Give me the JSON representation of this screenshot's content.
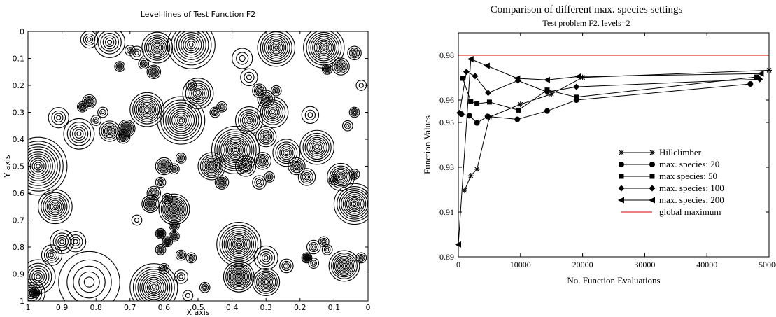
{
  "chart_data": [
    {
      "type": "contour",
      "title": "Level lines of Test Function F2",
      "xlabel": "X axis",
      "ylabel": "Y axis",
      "xlim": [
        1,
        0
      ],
      "ylim": [
        1,
        0
      ],
      "x_ticks": [
        "1",
        "0.9",
        "0.8",
        "0.7",
        "0.6",
        "0.5",
        "0.4",
        "0.3",
        "0.2",
        "0.1",
        "0"
      ],
      "y_ticks": [
        "0",
        "0.1",
        "0.2",
        "0.3",
        "0.4",
        "0.5",
        "0.6",
        "0.7",
        "0.8",
        "0.9",
        "1"
      ],
      "peaks": [
        {
          "x": 0.91,
          "y": 0.32,
          "r": 0.03,
          "n": 4
        },
        {
          "x": 0.85,
          "y": 0.38,
          "r": 0.045,
          "n": 6
        },
        {
          "x": 0.97,
          "y": 0.5,
          "r": 0.085,
          "n": 12
        },
        {
          "x": 0.92,
          "y": 0.65,
          "r": 0.05,
          "n": 9
        },
        {
          "x": 0.9,
          "y": 0.78,
          "r": 0.035,
          "n": 5
        },
        {
          "x": 0.93,
          "y": 0.83,
          "r": 0.03,
          "n": 5
        },
        {
          "x": 0.97,
          "y": 0.91,
          "r": 0.05,
          "n": 7
        },
        {
          "x": 0.99,
          "y": 0.97,
          "r": 0.04,
          "n": 6
        },
        {
          "x": 0.86,
          "y": 0.78,
          "r": 0.03,
          "n": 4
        },
        {
          "x": 0.82,
          "y": 0.03,
          "r": 0.025,
          "n": 4
        },
        {
          "x": 0.76,
          "y": 0.04,
          "r": 0.045,
          "n": 6
        },
        {
          "x": 0.7,
          "y": 0.07,
          "r": 0.015,
          "n": 3
        },
        {
          "x": 0.68,
          "y": 0.08,
          "r": 0.02,
          "n": 3
        },
        {
          "x": 0.73,
          "y": 0.13,
          "r": 0.015,
          "n": 5
        },
        {
          "x": 0.66,
          "y": 0.12,
          "r": 0.015,
          "n": 4
        },
        {
          "x": 0.62,
          "y": 0.06,
          "r": 0.045,
          "n": 9
        },
        {
          "x": 0.63,
          "y": 0.15,
          "r": 0.02,
          "n": 6
        },
        {
          "x": 0.82,
          "y": 0.26,
          "r": 0.02,
          "n": 6
        },
        {
          "x": 0.84,
          "y": 0.28,
          "r": 0.015,
          "n": 5
        },
        {
          "x": 0.78,
          "y": 0.3,
          "r": 0.015,
          "n": 3
        },
        {
          "x": 0.8,
          "y": 0.33,
          "r": 0.015,
          "n": 3
        },
        {
          "x": 0.65,
          "y": 0.29,
          "r": 0.05,
          "n": 10
        },
        {
          "x": 0.71,
          "y": 0.36,
          "r": 0.025,
          "n": 8
        },
        {
          "x": 0.72,
          "y": 0.39,
          "r": 0.02,
          "n": 6
        },
        {
          "x": 0.76,
          "y": 0.37,
          "r": 0.03,
          "n": 7
        },
        {
          "x": 0.52,
          "y": 0.05,
          "r": 0.07,
          "n": 10
        },
        {
          "x": 0.37,
          "y": 0.1,
          "r": 0.03,
          "n": 3
        },
        {
          "x": 0.35,
          "y": 0.17,
          "r": 0.025,
          "n": 3
        },
        {
          "x": 0.27,
          "y": 0.06,
          "r": 0.055,
          "n": 10
        },
        {
          "x": 0.13,
          "y": 0.06,
          "r": 0.06,
          "n": 11
        },
        {
          "x": 0.04,
          "y": 0.08,
          "r": 0.02,
          "n": 5
        },
        {
          "x": 0.08,
          "y": 0.13,
          "r": 0.025,
          "n": 6
        },
        {
          "x": 0.12,
          "y": 0.14,
          "r": 0.015,
          "n": 5
        },
        {
          "x": 0.02,
          "y": 0.2,
          "r": 0.015,
          "n": 2
        },
        {
          "x": 0.5,
          "y": 0.23,
          "r": 0.045,
          "n": 8
        },
        {
          "x": 0.55,
          "y": 0.33,
          "r": 0.07,
          "n": 11
        },
        {
          "x": 0.52,
          "y": 0.2,
          "r": 0.015,
          "n": 3
        },
        {
          "x": 0.43,
          "y": 0.28,
          "r": 0.015,
          "n": 4
        },
        {
          "x": 0.45,
          "y": 0.3,
          "r": 0.015,
          "n": 4
        },
        {
          "x": 0.32,
          "y": 0.22,
          "r": 0.02,
          "n": 5
        },
        {
          "x": 0.3,
          "y": 0.25,
          "r": 0.025,
          "n": 6
        },
        {
          "x": 0.27,
          "y": 0.22,
          "r": 0.015,
          "n": 4
        },
        {
          "x": 0.35,
          "y": 0.33,
          "r": 0.04,
          "n": 7
        },
        {
          "x": 0.28,
          "y": 0.3,
          "r": 0.045,
          "n": 8
        },
        {
          "x": 0.17,
          "y": 0.31,
          "r": 0.025,
          "n": 3
        },
        {
          "x": 0.04,
          "y": 0.3,
          "r": 0.015,
          "n": 5
        },
        {
          "x": 0.06,
          "y": 0.35,
          "r": 0.015,
          "n": 3
        },
        {
          "x": 0.39,
          "y": 0.44,
          "r": 0.07,
          "n": 13
        },
        {
          "x": 0.3,
          "y": 0.39,
          "r": 0.03,
          "n": 6
        },
        {
          "x": 0.46,
          "y": 0.5,
          "r": 0.04,
          "n": 9
        },
        {
          "x": 0.36,
          "y": 0.5,
          "r": 0.03,
          "n": 6
        },
        {
          "x": 0.31,
          "y": 0.48,
          "r": 0.025,
          "n": 6
        },
        {
          "x": 0.24,
          "y": 0.45,
          "r": 0.04,
          "n": 7
        },
        {
          "x": 0.15,
          "y": 0.43,
          "r": 0.05,
          "n": 9
        },
        {
          "x": 0.08,
          "y": 0.54,
          "r": 0.04,
          "n": 8
        },
        {
          "x": 0.21,
          "y": 0.5,
          "r": 0.025,
          "n": 6
        },
        {
          "x": 0.18,
          "y": 0.54,
          "r": 0.025,
          "n": 5
        },
        {
          "x": 0.04,
          "y": 0.64,
          "r": 0.06,
          "n": 11
        },
        {
          "x": 0.1,
          "y": 0.55,
          "r": 0.015,
          "n": 4
        },
        {
          "x": 0.04,
          "y": 0.53,
          "r": 0.015,
          "n": 4
        },
        {
          "x": 0.29,
          "y": 0.54,
          "r": 0.015,
          "n": 4
        },
        {
          "x": 0.32,
          "y": 0.56,
          "r": 0.02,
          "n": 4
        },
        {
          "x": 0.43,
          "y": 0.56,
          "r": 0.02,
          "n": 6
        },
        {
          "x": 0.6,
          "y": 0.5,
          "r": 0.025,
          "n": 7
        },
        {
          "x": 0.57,
          "y": 0.51,
          "r": 0.015,
          "n": 4
        },
        {
          "x": 0.55,
          "y": 0.47,
          "r": 0.015,
          "n": 4
        },
        {
          "x": 0.61,
          "y": 0.56,
          "r": 0.015,
          "n": 4
        },
        {
          "x": 0.63,
          "y": 0.6,
          "r": 0.02,
          "n": 5
        },
        {
          "x": 0.64,
          "y": 0.64,
          "r": 0.025,
          "n": 7
        },
        {
          "x": 0.59,
          "y": 0.62,
          "r": 0.015,
          "n": 4
        },
        {
          "x": 0.57,
          "y": 0.66,
          "r": 0.045,
          "n": 11
        },
        {
          "x": 0.57,
          "y": 0.72,
          "r": 0.015,
          "n": 5
        },
        {
          "x": 0.68,
          "y": 0.7,
          "r": 0.015,
          "n": 2
        },
        {
          "x": 0.61,
          "y": 0.75,
          "r": 0.015,
          "n": 7
        },
        {
          "x": 0.59,
          "y": 0.78,
          "r": 0.015,
          "n": 6
        },
        {
          "x": 0.61,
          "y": 0.81,
          "r": 0.015,
          "n": 5
        },
        {
          "x": 0.57,
          "y": 0.76,
          "r": 0.015,
          "n": 5
        },
        {
          "x": 0.55,
          "y": 0.83,
          "r": 0.015,
          "n": 4
        },
        {
          "x": 0.52,
          "y": 0.84,
          "r": 0.015,
          "n": 4
        },
        {
          "x": 0.38,
          "y": 0.79,
          "r": 0.065,
          "n": 12
        },
        {
          "x": 0.3,
          "y": 0.84,
          "r": 0.035,
          "n": 5
        },
        {
          "x": 0.38,
          "y": 0.91,
          "r": 0.045,
          "n": 11
        },
        {
          "x": 0.3,
          "y": 0.93,
          "r": 0.04,
          "n": 9
        },
        {
          "x": 0.24,
          "y": 0.87,
          "r": 0.02,
          "n": 4
        },
        {
          "x": 0.82,
          "y": 0.93,
          "r": 0.09,
          "n": 5
        },
        {
          "x": 0.63,
          "y": 0.95,
          "r": 0.07,
          "n": 12
        },
        {
          "x": 0.6,
          "y": 0.88,
          "r": 0.015,
          "n": 4
        },
        {
          "x": 0.55,
          "y": 0.91,
          "r": 0.02,
          "n": 3
        },
        {
          "x": 0.53,
          "y": 0.98,
          "r": 0.015,
          "n": 2
        },
        {
          "x": 0.48,
          "y": 0.95,
          "r": 0.015,
          "n": 4
        },
        {
          "x": 0.16,
          "y": 0.8,
          "r": 0.02,
          "n": 4
        },
        {
          "x": 0.13,
          "y": 0.78,
          "r": 0.015,
          "n": 4
        },
        {
          "x": 0.18,
          "y": 0.84,
          "r": 0.015,
          "n": 7
        },
        {
          "x": 0.12,
          "y": 0.81,
          "r": 0.015,
          "n": 3
        },
        {
          "x": 0.16,
          "y": 0.86,
          "r": 0.015,
          "n": 3
        },
        {
          "x": 0.07,
          "y": 0.87,
          "r": 0.045,
          "n": 10
        },
        {
          "x": 0.02,
          "y": 0.84,
          "r": 0.015,
          "n": 4
        },
        {
          "x": 0.98,
          "y": 0.97,
          "r": 0.015,
          "n": 6
        }
      ]
    },
    {
      "type": "line",
      "title": "Comparison of different max. species settings",
      "subtitle": "Test problem F2. levels=2",
      "xlabel": "No. Function Evaluations",
      "ylabel": "Function Values",
      "xlim": [
        0,
        50000
      ],
      "ylim": [
        0.89,
        0.99
      ],
      "x_ticks": [
        0,
        10000,
        20000,
        30000,
        40000,
        50000
      ],
      "y_ticks": [
        0.89,
        0.91,
        0.93,
        0.95,
        0.96,
        0.98
      ],
      "y_tick_labels": [
        "0.89",
        "0.91",
        "0.93",
        "0.95",
        "0.96",
        "0.98"
      ],
      "legend_position": "bottom-right",
      "reference_line": {
        "name": "global maximum",
        "y": 0.98,
        "color": "#d60000"
      },
      "series": [
        {
          "name": "Hillclimber",
          "marker": "asterisk",
          "x": [
            1000,
            2000,
            3000,
            5000,
            10000,
            15000,
            20000,
            50000
          ],
          "y": [
            0.9197,
            0.9262,
            0.9291,
            0.9524,
            0.9581,
            0.9627,
            0.9701,
            0.9733
          ]
        },
        {
          "name": "max. species: 20",
          "marker": "circle",
          "x": [
            500,
            1800,
            3000,
            4700,
            9500,
            14300,
            19000,
            47000
          ],
          "y": [
            0.9537,
            0.953,
            0.9498,
            0.9527,
            0.9514,
            0.9551,
            0.96,
            0.9672
          ]
        },
        {
          "name": "max species: 50",
          "marker": "square",
          "x": [
            700,
            2000,
            3000,
            5000,
            9700,
            14300,
            19000,
            48000
          ],
          "y": [
            0.9697,
            0.9594,
            0.9583,
            0.9591,
            0.9555,
            0.9645,
            0.9613,
            0.9703
          ]
        },
        {
          "name": "max. species: 100",
          "marker": "diamond",
          "x": [
            200,
            1300,
            2700,
            4800,
            9600,
            14300,
            19000,
            48500
          ],
          "y": [
            0.9543,
            0.9726,
            0.9707,
            0.9632,
            0.9687,
            0.9636,
            0.9659,
            0.9693
          ]
        },
        {
          "name": "max. species: 200",
          "marker": "triangle-left",
          "x": [
            0,
            2000,
            4600,
            9500,
            14300,
            19300,
            48700
          ],
          "y": [
            0.8955,
            0.9783,
            0.9753,
            0.9697,
            0.969,
            0.9705,
            0.9718
          ]
        }
      ]
    }
  ]
}
